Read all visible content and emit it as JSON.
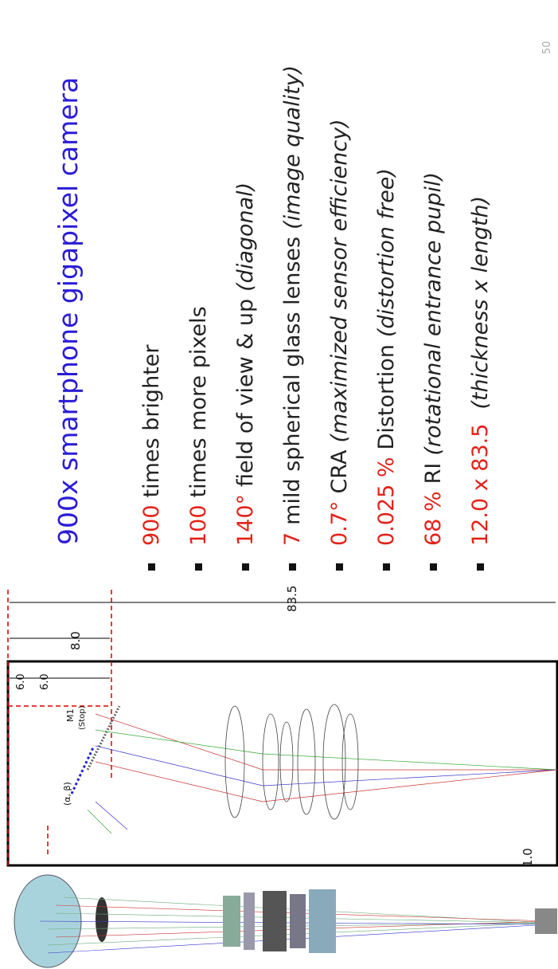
{
  "slide": {
    "title": "900x smartphone gigapixel camera",
    "bullets": [
      {
        "highlight": "900",
        "text": "times brighter"
      },
      {
        "highlight": "100",
        "text": "times more pixels"
      },
      {
        "highlight": "140°",
        "text": "field of view & up",
        "note": "(diagonal)"
      },
      {
        "highlight": "7",
        "text": "mild spherical glass lenses",
        "note": "(image quality)"
      },
      {
        "highlight": "0.7°",
        "text": "CRA",
        "note": "(maximized sensor efficiency)"
      },
      {
        "highlight": "0.025 %",
        "text": "Distortion",
        "note": "(distortion free)"
      },
      {
        "highlight": "68 %",
        "text": "RI",
        "note": "(rotational entrance pupil)"
      },
      {
        "highlight": "12.0 x 83.5",
        "text": "",
        "note": "(thickness x length)"
      }
    ],
    "diagram": {
      "length": "83.5",
      "offset": "8.0",
      "half_a": "6.0",
      "half_b": "6.0",
      "mirror": "M1",
      "stop": "(Stop)",
      "angles": "(α, β)",
      "gap": "1.0"
    },
    "page_number": "50"
  }
}
